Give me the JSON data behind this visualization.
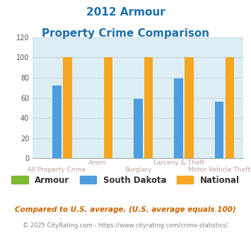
{
  "title_line1": "2012 Armour",
  "title_line2": "Property Crime Comparison",
  "categories": [
    "All Property Crime",
    "Arson",
    "Burglary",
    "Larceny & Theft",
    "Motor Vehicle Theft"
  ],
  "category_labels_top": [
    "",
    "Arson",
    "",
    "Larceny & Theft",
    ""
  ],
  "category_labels_bottom": [
    "All Property Crime",
    "",
    "Burglary",
    "",
    "Motor Vehicle Theft"
  ],
  "armour_values": [
    0,
    0,
    0,
    0,
    0
  ],
  "south_dakota_values": [
    72,
    0,
    59,
    79,
    56
  ],
  "national_values": [
    100,
    100,
    100,
    100,
    100
  ],
  "bar_colors": {
    "armour": "#7db832",
    "south_dakota": "#4d9de0",
    "national": "#f5a623"
  },
  "ylim": [
    0,
    120
  ],
  "yticks": [
    0,
    20,
    40,
    60,
    80,
    100,
    120
  ],
  "title_color": "#1a6fad",
  "label_color_top": "#c0a0a0",
  "label_color_bot": "#c0a0a0",
  "legend_labels": [
    "Armour",
    "South Dakota",
    "National"
  ],
  "footnote1": "Compared to U.S. average. (U.S. average equals 100)",
  "footnote2": "© 2025 CityRating.com - https://www.cityrating.com/crime-statistics/",
  "footnote1_color": "#cc6600",
  "footnote2_color": "#888888",
  "background_color": "#ddeef5",
  "figure_background": "#ffffff",
  "grid_color": "#c5d8e0"
}
